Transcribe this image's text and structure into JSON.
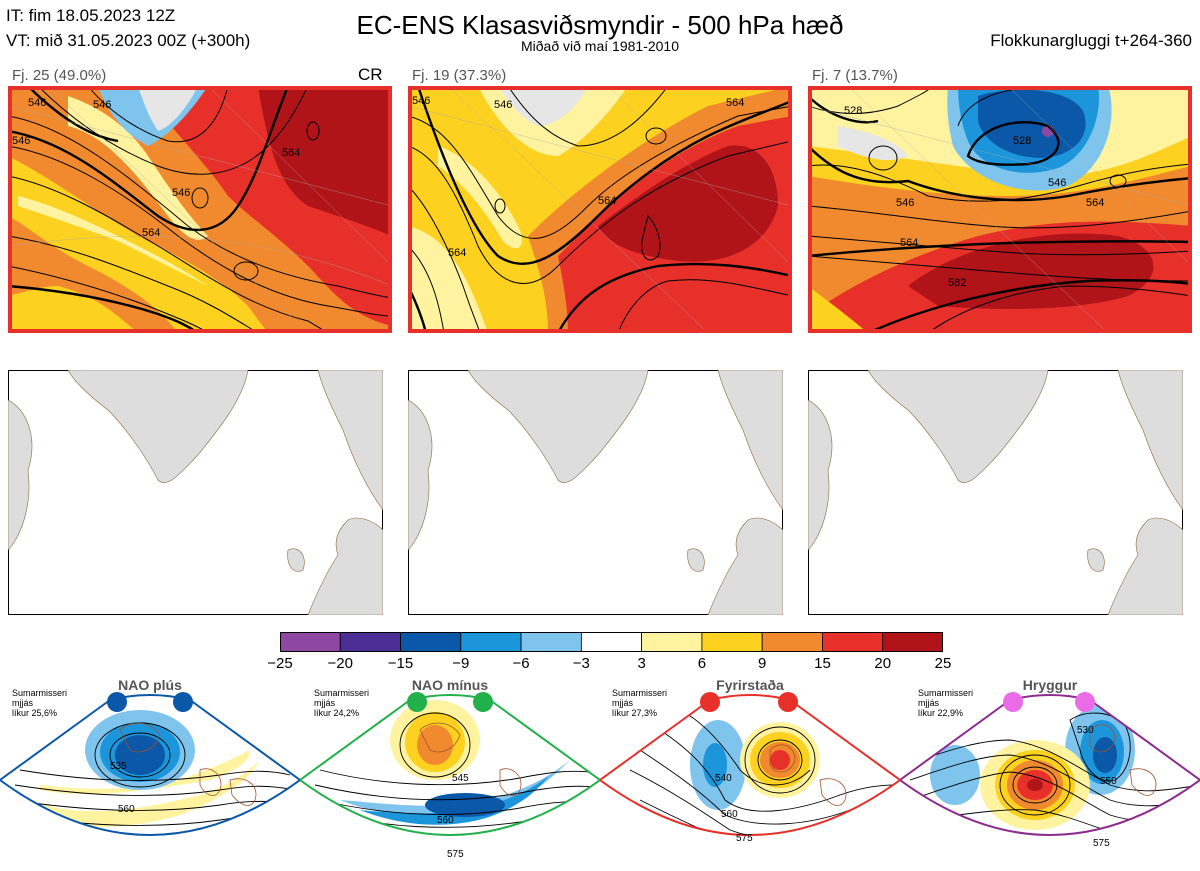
{
  "header": {
    "init_time": "IT: fim 18.05.2023 12Z",
    "valid_time": "VT: mið 31.05.2023 00Z  (+300h)",
    "title": "EC-ENS Klasasviðsmyndir - 500 hPa hæð",
    "subtitle": "Miðað við maí 1981-2010",
    "window": "Flokkunargluggi t+264-360"
  },
  "clusters": [
    {
      "label": "Fj. 25 (49.0%)",
      "members": 25,
      "percent": 49.0,
      "tag": "CR",
      "contours": [
        "546",
        "546",
        "546",
        "546",
        "564",
        "564"
      ],
      "frame_color": "#e8302b"
    },
    {
      "label": "Fj. 19 (37.3%)",
      "members": 19,
      "percent": 37.3,
      "tag": "",
      "contours": [
        "546",
        "546",
        "564",
        "564",
        "564"
      ],
      "frame_color": "#e8302b"
    },
    {
      "label": "Fj. 7 (13.7%)",
      "members": 7,
      "percent": 13.7,
      "tag": "",
      "contours": [
        "528",
        "528",
        "546",
        "546",
        "564",
        "564",
        "582"
      ],
      "frame_color": "#e8302b"
    }
  ],
  "colorbar": {
    "ticks": [
      "−25",
      "−20",
      "−15",
      "−9",
      "−6",
      "−3",
      "3",
      "6",
      "9",
      "15",
      "20",
      "25"
    ],
    "colors": [
      "#8e47a2",
      "#4b2e96",
      "#0b57a8",
      "#1c95da",
      "#7fc4ec",
      "#ffffff",
      "#fff3a0",
      "#fcd120",
      "#f18a2e",
      "#e8302b",
      "#b01419"
    ]
  },
  "chart_data": {
    "type": "heatmap",
    "title": "EC-ENS Klasasviðsmyndir - 500 hPa hæð",
    "variable": "500 hPa geopotential height anomaly (dam) with height contours",
    "color_scale": [
      -25,
      -20,
      -15,
      -9,
      -6,
      -3,
      3,
      6,
      9,
      15,
      20,
      25
    ],
    "clusters": [
      {
        "name": "Fj. 25",
        "members": 25,
        "percent": 49.0
      },
      {
        "name": "Fj. 19",
        "members": 19,
        "percent": 37.3
      },
      {
        "name": "Fj. 7",
        "members": 7,
        "percent": 13.7
      }
    ],
    "regimes": [
      {
        "name": "NAO plús",
        "likelihood": 25.6
      },
      {
        "name": "NAO mínus",
        "likelihood": 24.2
      },
      {
        "name": "Fyrirstaða",
        "likelihood": 27.3
      },
      {
        "name": "Hryggur",
        "likelihood": 22.9
      }
    ]
  },
  "regimes": [
    {
      "name": "NAO plús",
      "season": "Sumarmisseri",
      "type": "mjjás",
      "prob": "líkur 25,6%",
      "dot_color": "#0b57a8",
      "frame_color": "#0b57a8",
      "contours": [
        "535",
        "560"
      ]
    },
    {
      "name": "NAO mínus",
      "season": "Sumarmisseri",
      "type": "mjjás",
      "prob": "líkur 24,2%",
      "dot_color": "#22b04b",
      "frame_color": "#22b04b",
      "contours": [
        "545",
        "560",
        "575"
      ]
    },
    {
      "name": "Fyrirstaða",
      "season": "Sumarmisseri",
      "type": "mjjás",
      "prob": "líkur 27,3%",
      "dot_color": "#e8302b",
      "frame_color": "#e8302b",
      "contours": [
        "540",
        "560",
        "575"
      ]
    },
    {
      "name": "Hryggur",
      "season": "Sumarmisseri",
      "type": "mjjás",
      "prob": "líkur 22,9%",
      "dot_color": "#ea6be8",
      "frame_color": "#8e2a8e",
      "contours": [
        "530",
        "550",
        "575"
      ]
    }
  ]
}
